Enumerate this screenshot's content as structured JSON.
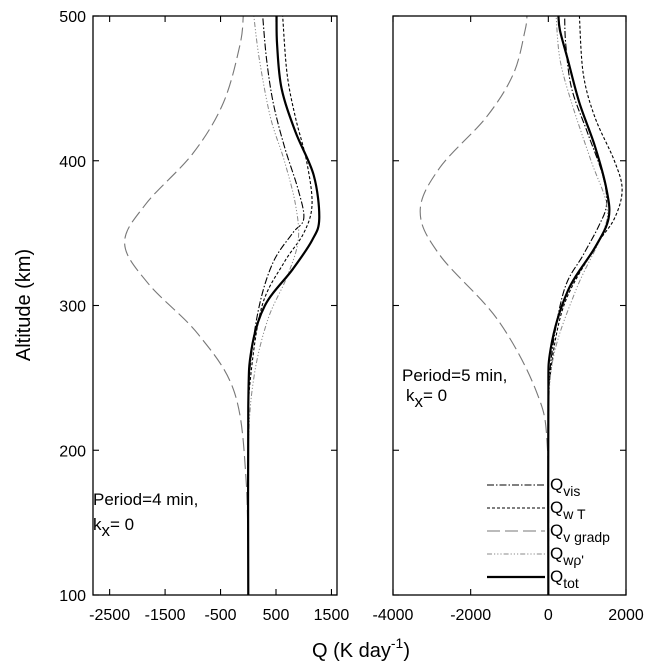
{
  "figure": {
    "ylabel": "Altitude (km)",
    "xlabel_main": "Q (K day",
    "xlabel_sup": "-1",
    "xlabel_close": ")"
  },
  "legend": [
    {
      "key": "vis",
      "main": "Q",
      "sub": "vis",
      "stroke": "#000000",
      "dash": "7,2,1.5,2",
      "width": 1.1
    },
    {
      "key": "wT",
      "main": "Q",
      "sub": "w T",
      "stroke": "#000000",
      "dash": "3,2",
      "width": 1.1
    },
    {
      "key": "vgradp",
      "main": "Q",
      "sub": "v gradp",
      "stroke": "#777777",
      "dash": "13,5",
      "width": 1.1
    },
    {
      "key": "wrho",
      "main": "Q",
      "sub": "wρ'",
      "stroke": "#888888",
      "dash": "5,2,1.2,2,1.2,2,1.2,2",
      "width": 1.0
    },
    {
      "key": "tot",
      "main": "Q",
      "sub": "tot",
      "stroke": "#000000",
      "dash": "",
      "width": 2.2
    }
  ],
  "chart_data": [
    {
      "type": "line",
      "xlim": [
        -2800,
        1600
      ],
      "ylim": [
        100,
        500
      ],
      "xticks": [
        -2500,
        -1500,
        -500,
        500,
        1500
      ],
      "xtick_labels": [
        "-2500",
        "-1500",
        "-500",
        "500",
        "1500"
      ],
      "yticks": [
        100,
        200,
        300,
        400,
        500
      ],
      "ytick_labels": [
        "100",
        "200",
        "300",
        "400",
        "500"
      ],
      "annotation_line1": "Period=4 min,",
      "annotation_k": "k",
      "annotation_sub": "x",
      "annotation_rest": "= 0",
      "series": [
        {
          "key": "vis",
          "points": [
            [
              0,
              100
            ],
            [
              0,
              220
            ],
            [
              40,
              260
            ],
            [
              200,
              300
            ],
            [
              450,
              330
            ],
            [
              800,
              350
            ],
            [
              1000,
              360
            ],
            [
              900,
              380
            ],
            [
              650,
              410
            ],
            [
              450,
              440
            ],
            [
              330,
              470
            ],
            [
              260,
              500
            ]
          ]
        },
        {
          "key": "wT",
          "points": [
            [
              0,
              100
            ],
            [
              0,
              210
            ],
            [
              40,
              250
            ],
            [
              250,
              300
            ],
            [
              650,
              330
            ],
            [
              1000,
              350
            ],
            [
              1150,
              370
            ],
            [
              1050,
              400
            ],
            [
              850,
              430
            ],
            [
              700,
              460
            ],
            [
              620,
              500
            ]
          ]
        },
        {
          "key": "vgradp",
          "points": [
            [
              0,
              100
            ],
            [
              -40,
              180
            ],
            [
              -250,
              240
            ],
            [
              -900,
              280
            ],
            [
              -1800,
              315
            ],
            [
              -2230,
              343
            ],
            [
              -1850,
              370
            ],
            [
              -1000,
              405
            ],
            [
              -450,
              440
            ],
            [
              -150,
              480
            ],
            [
              -90,
              500
            ]
          ]
        },
        {
          "key": "wrho",
          "points": [
            [
              0,
              100
            ],
            [
              0,
              200
            ],
            [
              100,
              250
            ],
            [
              350,
              290
            ],
            [
              700,
              320
            ],
            [
              900,
              345
            ],
            [
              850,
              370
            ],
            [
              650,
              400
            ],
            [
              400,
              430
            ],
            [
              200,
              470
            ],
            [
              100,
              500
            ]
          ]
        },
        {
          "key": "tot",
          "points": [
            [
              0,
              100
            ],
            [
              0,
              230
            ],
            [
              60,
              270
            ],
            [
              300,
              300
            ],
            [
              800,
              325
            ],
            [
              1150,
              345
            ],
            [
              1280,
              360
            ],
            [
              1180,
              390
            ],
            [
              850,
              420
            ],
            [
              600,
              450
            ],
            [
              520,
              480
            ],
            [
              510,
              500
            ]
          ]
        }
      ]
    },
    {
      "type": "line",
      "xlim": [
        -4000,
        2000
      ],
      "ylim": [
        100,
        500
      ],
      "xticks": [
        -4000,
        -2000,
        0,
        2000
      ],
      "xtick_labels": [
        "-4000",
        "-2000",
        "0",
        "2000"
      ],
      "yticks": [
        100,
        200,
        300,
        400,
        500
      ],
      "ytick_labels": [
        "",
        "",
        "",
        "",
        ""
      ],
      "annotation_line1": "Period=5 min,",
      "annotation_k": "k",
      "annotation_sub": "x",
      "annotation_rest": "= 0",
      "series": [
        {
          "key": "vis",
          "points": [
            [
              0,
              100
            ],
            [
              0,
              210
            ],
            [
              60,
              260
            ],
            [
              400,
              310
            ],
            [
              900,
              335
            ],
            [
              1300,
              355
            ],
            [
              1500,
              370
            ],
            [
              1400,
              390
            ],
            [
              1000,
              420
            ],
            [
              600,
              450
            ],
            [
              450,
              480
            ],
            [
              420,
              500
            ]
          ]
        },
        {
          "key": "wT",
          "points": [
            [
              0,
              100
            ],
            [
              0,
              210
            ],
            [
              40,
              250
            ],
            [
              400,
              300
            ],
            [
              1200,
              340
            ],
            [
              1700,
              360
            ],
            [
              1900,
              380
            ],
            [
              1700,
              400
            ],
            [
              1200,
              430
            ],
            [
              900,
              460
            ],
            [
              800,
              500
            ]
          ]
        },
        {
          "key": "vgradp",
          "points": [
            [
              0,
              100
            ],
            [
              -20,
              200
            ],
            [
              -300,
              240
            ],
            [
              -1300,
              290
            ],
            [
              -2800,
              335
            ],
            [
              -3300,
              365
            ],
            [
              -2800,
              395
            ],
            [
              -1600,
              430
            ],
            [
              -900,
              460
            ],
            [
              -600,
              490
            ],
            [
              -550,
              500
            ]
          ]
        },
        {
          "key": "wrho",
          "points": [
            [
              0,
              100
            ],
            [
              0,
              200
            ],
            [
              100,
              260
            ],
            [
              700,
              310
            ],
            [
              1400,
              350
            ],
            [
              1500,
              370
            ],
            [
              1100,
              400
            ],
            [
              600,
              440
            ],
            [
              300,
              470
            ],
            [
              200,
              500
            ]
          ]
        },
        {
          "key": "tot",
          "points": [
            [
              0,
              100
            ],
            [
              0,
              230
            ],
            [
              60,
              270
            ],
            [
              500,
              310
            ],
            [
              1200,
              340
            ],
            [
              1550,
              360
            ],
            [
              1500,
              380
            ],
            [
              1200,
              410
            ],
            [
              800,
              440
            ],
            [
              500,
              470
            ],
            [
              300,
              490
            ],
            [
              260,
              500
            ]
          ]
        }
      ]
    }
  ]
}
